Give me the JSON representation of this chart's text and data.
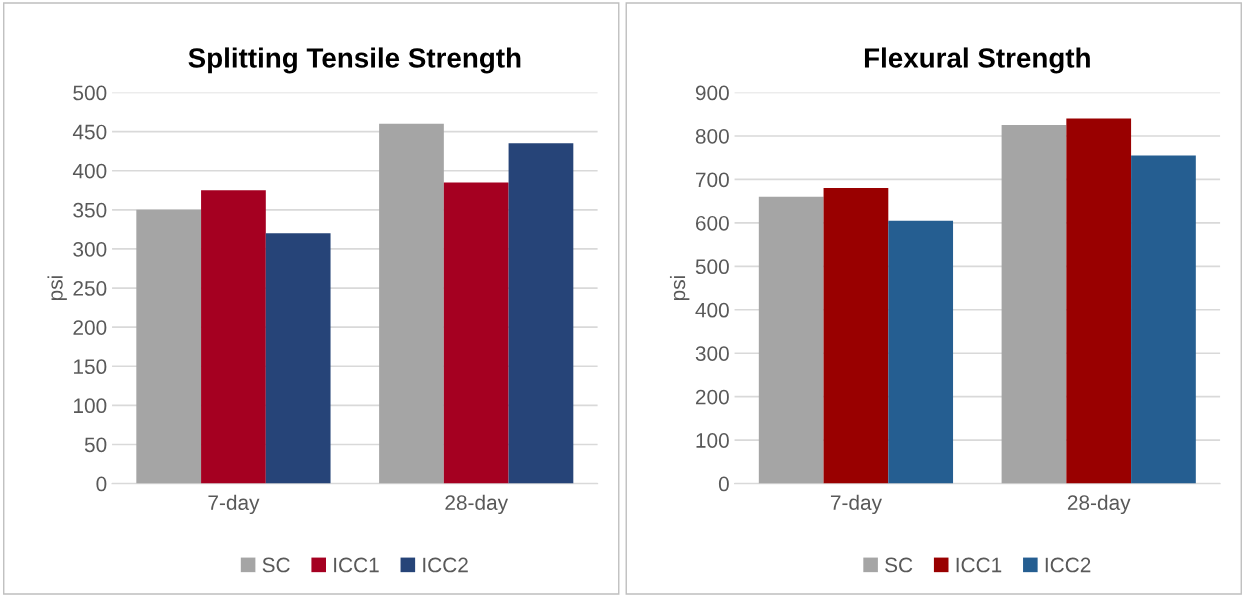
{
  "chart_data": [
    {
      "type": "bar",
      "title": "Splitting Tensile Strength",
      "ylabel": "psi",
      "categories": [
        "7-day",
        "28-day"
      ],
      "series": [
        {
          "name": "SC",
          "color": "#a5a5a5",
          "values": [
            350,
            460
          ]
        },
        {
          "name": "ICC1",
          "color": "#a50021",
          "values": [
            375,
            385
          ]
        },
        {
          "name": "ICC2",
          "color": "#264478",
          "values": [
            320,
            435
          ]
        }
      ],
      "ylim": [
        0,
        500
      ],
      "yticks": [
        0,
        50,
        100,
        150,
        200,
        250,
        300,
        350,
        400,
        450,
        500
      ],
      "grid": "y",
      "legend": "bottom"
    },
    {
      "type": "bar",
      "title": "Flexural Strength",
      "ylabel": "psi",
      "categories": [
        "7-day",
        "28-day"
      ],
      "series": [
        {
          "name": "SC",
          "color": "#a5a5a5",
          "values": [
            660,
            825
          ]
        },
        {
          "name": "ICC1",
          "color": "#990000",
          "values": [
            680,
            840
          ]
        },
        {
          "name": "ICC2",
          "color": "#255e91",
          "values": [
            605,
            755
          ]
        }
      ],
      "ylim": [
        0,
        900
      ],
      "yticks": [
        0,
        100,
        200,
        300,
        400,
        500,
        600,
        700,
        800,
        900
      ],
      "grid": "y",
      "legend": "bottom"
    }
  ]
}
